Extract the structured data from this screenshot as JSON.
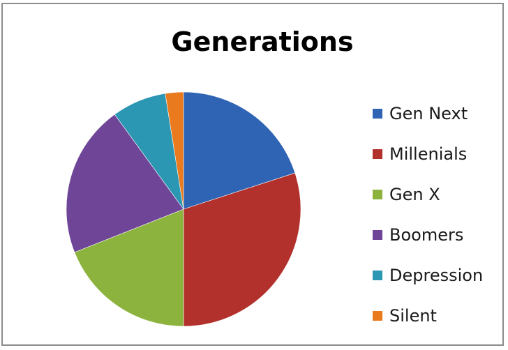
{
  "chart_data": {
    "type": "pie",
    "title": "Generations",
    "legend_position": "right",
    "categories": [
      "Gen Next",
      "Millenials",
      "Gen X",
      "Boomers",
      "Depression",
      "Silent"
    ],
    "values": [
      20,
      30,
      19,
      21,
      7.5,
      2.5
    ],
    "colors": [
      "#2e64b3",
      "#b3312d",
      "#8cb33d",
      "#6e4597",
      "#2c97b3",
      "#ea7a1e"
    ]
  }
}
